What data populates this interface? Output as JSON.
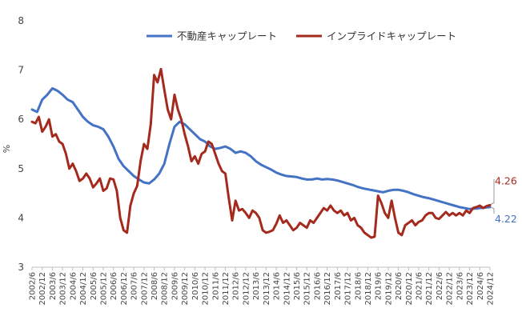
{
  "chart_data": {
    "type": "line",
    "title": "",
    "xlabel": "",
    "ylabel": "%",
    "ylim": [
      3,
      8
    ],
    "yticks": [
      3,
      4,
      5,
      6,
      7,
      8
    ],
    "grid": false,
    "legend_position": "top",
    "x_start": "2002/6",
    "x_end": "2024/12",
    "x_tick_labels": [
      "2002/6",
      "2002/12",
      "2003/6",
      "2003/12",
      "2004/6",
      "2004/12",
      "2005/6",
      "2005/12",
      "2006/6",
      "2006/12",
      "2007/6",
      "2007/12",
      "2008/6",
      "2008/12",
      "2009/6",
      "2009/12",
      "2010/6",
      "2010/12",
      "2011/6",
      "2011/12",
      "2012/6",
      "2012/12",
      "2013/6",
      "2013/12",
      "2014/6",
      "2014/12",
      "2015/6",
      "2015/12",
      "2016/6",
      "2016/12",
      "2017/6",
      "2017/12",
      "2018/6",
      "2018/12",
      "2019/6",
      "2019/12",
      "2020/6",
      "2020/12",
      "2021/6",
      "2021/12",
      "2022/6",
      "2022/12",
      "2023/6",
      "2023/12",
      "2024/6",
      "2024/12"
    ],
    "series": [
      {
        "name": "不動産キャップレート",
        "color": "#4472C4",
        "end_label": "4.22",
        "points": [
          [
            "2002/6",
            6.2
          ],
          [
            "2002/9",
            6.15
          ],
          [
            "2002/12",
            6.4
          ],
          [
            "2003/3",
            6.5
          ],
          [
            "2003/6",
            6.63
          ],
          [
            "2003/9",
            6.58
          ],
          [
            "2003/12",
            6.5
          ],
          [
            "2004/3",
            6.4
          ],
          [
            "2004/6",
            6.35
          ],
          [
            "2004/9",
            6.2
          ],
          [
            "2004/12",
            6.05
          ],
          [
            "2005/3",
            5.95
          ],
          [
            "2005/6",
            5.88
          ],
          [
            "2005/9",
            5.85
          ],
          [
            "2005/12",
            5.8
          ],
          [
            "2006/3",
            5.65
          ],
          [
            "2006/6",
            5.45
          ],
          [
            "2006/9",
            5.2
          ],
          [
            "2006/12",
            5.05
          ],
          [
            "2007/3",
            4.95
          ],
          [
            "2007/6",
            4.85
          ],
          [
            "2007/9",
            4.78
          ],
          [
            "2007/12",
            4.72
          ],
          [
            "2008/3",
            4.7
          ],
          [
            "2008/6",
            4.78
          ],
          [
            "2008/9",
            4.9
          ],
          [
            "2008/12",
            5.1
          ],
          [
            "2009/3",
            5.5
          ],
          [
            "2009/6",
            5.85
          ],
          [
            "2009/9",
            5.95
          ],
          [
            "2009/12",
            5.9
          ],
          [
            "2010/3",
            5.8
          ],
          [
            "2010/6",
            5.7
          ],
          [
            "2010/9",
            5.6
          ],
          [
            "2010/12",
            5.55
          ],
          [
            "2011/3",
            5.45
          ],
          [
            "2011/6",
            5.4
          ],
          [
            "2011/9",
            5.42
          ],
          [
            "2011/12",
            5.45
          ],
          [
            "2012/3",
            5.4
          ],
          [
            "2012/6",
            5.32
          ],
          [
            "2012/9",
            5.35
          ],
          [
            "2012/12",
            5.32
          ],
          [
            "2013/3",
            5.25
          ],
          [
            "2013/6",
            5.15
          ],
          [
            "2013/9",
            5.08
          ],
          [
            "2013/12",
            5.03
          ],
          [
            "2014/3",
            4.98
          ],
          [
            "2014/6",
            4.92
          ],
          [
            "2014/9",
            4.88
          ],
          [
            "2014/12",
            4.85
          ],
          [
            "2015/3",
            4.84
          ],
          [
            "2015/6",
            4.83
          ],
          [
            "2015/9",
            4.8
          ],
          [
            "2015/12",
            4.78
          ],
          [
            "2016/3",
            4.78
          ],
          [
            "2016/6",
            4.8
          ],
          [
            "2016/9",
            4.78
          ],
          [
            "2016/12",
            4.79
          ],
          [
            "2017/3",
            4.78
          ],
          [
            "2017/6",
            4.76
          ],
          [
            "2017/9",
            4.73
          ],
          [
            "2017/12",
            4.7
          ],
          [
            "2018/3",
            4.67
          ],
          [
            "2018/6",
            4.63
          ],
          [
            "2018/9",
            4.6
          ],
          [
            "2018/12",
            4.58
          ],
          [
            "2019/3",
            4.56
          ],
          [
            "2019/6",
            4.54
          ],
          [
            "2019/9",
            4.52
          ],
          [
            "2019/12",
            4.55
          ],
          [
            "2020/3",
            4.57
          ],
          [
            "2020/6",
            4.57
          ],
          [
            "2020/9",
            4.55
          ],
          [
            "2020/12",
            4.52
          ],
          [
            "2021/3",
            4.48
          ],
          [
            "2021/6",
            4.45
          ],
          [
            "2021/9",
            4.42
          ],
          [
            "2021/12",
            4.4
          ],
          [
            "2022/3",
            4.37
          ],
          [
            "2022/6",
            4.34
          ],
          [
            "2022/9",
            4.31
          ],
          [
            "2022/12",
            4.28
          ],
          [
            "2023/3",
            4.25
          ],
          [
            "2023/6",
            4.22
          ],
          [
            "2023/9",
            4.2
          ],
          [
            "2023/12",
            4.18
          ],
          [
            "2024/3",
            4.19
          ],
          [
            "2024/6",
            4.2
          ],
          [
            "2024/9",
            4.21
          ],
          [
            "2024/12",
            4.22
          ]
        ]
      },
      {
        "name": "インプライドキャップレート",
        "color": "#A52A1E",
        "end_label": "4.26",
        "points": [
          [
            "2002/6",
            5.95
          ],
          [
            "2002/8",
            5.92
          ],
          [
            "2002/10",
            6.05
          ],
          [
            "2002/12",
            5.75
          ],
          [
            "2003/2",
            5.85
          ],
          [
            "2003/4",
            6.0
          ],
          [
            "2003/6",
            5.65
          ],
          [
            "2003/8",
            5.7
          ],
          [
            "2003/10",
            5.55
          ],
          [
            "2003/12",
            5.5
          ],
          [
            "2004/2",
            5.3
          ],
          [
            "2004/4",
            5.0
          ],
          [
            "2004/6",
            5.1
          ],
          [
            "2004/8",
            4.95
          ],
          [
            "2004/10",
            4.75
          ],
          [
            "2004/12",
            4.8
          ],
          [
            "2005/2",
            4.9
          ],
          [
            "2005/4",
            4.8
          ],
          [
            "2005/6",
            4.62
          ],
          [
            "2005/8",
            4.7
          ],
          [
            "2005/10",
            4.8
          ],
          [
            "2005/12",
            4.55
          ],
          [
            "2006/2",
            4.6
          ],
          [
            "2006/4",
            4.8
          ],
          [
            "2006/6",
            4.78
          ],
          [
            "2006/8",
            4.55
          ],
          [
            "2006/10",
            4.0
          ],
          [
            "2006/12",
            3.75
          ],
          [
            "2007/2",
            3.7
          ],
          [
            "2007/4",
            4.25
          ],
          [
            "2007/6",
            4.5
          ],
          [
            "2007/8",
            4.65
          ],
          [
            "2007/10",
            5.15
          ],
          [
            "2007/12",
            5.5
          ],
          [
            "2008/2",
            5.4
          ],
          [
            "2008/4",
            5.9
          ],
          [
            "2008/6",
            6.9
          ],
          [
            "2008/8",
            6.75
          ],
          [
            "2008/10",
            7.02
          ],
          [
            "2008/12",
            6.6
          ],
          [
            "2009/2",
            6.2
          ],
          [
            "2009/4",
            6.0
          ],
          [
            "2009/6",
            6.5
          ],
          [
            "2009/8",
            6.2
          ],
          [
            "2009/10",
            6.0
          ],
          [
            "2009/12",
            5.7
          ],
          [
            "2010/2",
            5.45
          ],
          [
            "2010/4",
            5.15
          ],
          [
            "2010/6",
            5.25
          ],
          [
            "2010/8",
            5.1
          ],
          [
            "2010/10",
            5.3
          ],
          [
            "2010/12",
            5.35
          ],
          [
            "2011/2",
            5.55
          ],
          [
            "2011/4",
            5.5
          ],
          [
            "2011/6",
            5.3
          ],
          [
            "2011/8",
            5.1
          ],
          [
            "2011/10",
            4.95
          ],
          [
            "2011/12",
            4.9
          ],
          [
            "2012/2",
            4.4
          ],
          [
            "2012/4",
            3.95
          ],
          [
            "2012/6",
            4.35
          ],
          [
            "2012/8",
            4.15
          ],
          [
            "2012/10",
            4.18
          ],
          [
            "2012/12",
            4.1
          ],
          [
            "2013/2",
            4.0
          ],
          [
            "2013/4",
            4.15
          ],
          [
            "2013/6",
            4.1
          ],
          [
            "2013/8",
            4.0
          ],
          [
            "2013/10",
            3.75
          ],
          [
            "2013/12",
            3.7
          ],
          [
            "2014/2",
            3.72
          ],
          [
            "2014/4",
            3.75
          ],
          [
            "2014/6",
            3.88
          ],
          [
            "2014/8",
            4.05
          ],
          [
            "2014/10",
            3.9
          ],
          [
            "2014/12",
            3.95
          ],
          [
            "2015/2",
            3.85
          ],
          [
            "2015/4",
            3.75
          ],
          [
            "2015/6",
            3.8
          ],
          [
            "2015/8",
            3.9
          ],
          [
            "2015/10",
            3.85
          ],
          [
            "2015/12",
            3.8
          ],
          [
            "2016/2",
            3.95
          ],
          [
            "2016/4",
            3.9
          ],
          [
            "2016/6",
            4.0
          ],
          [
            "2016/8",
            4.1
          ],
          [
            "2016/10",
            4.2
          ],
          [
            "2016/12",
            4.15
          ],
          [
            "2017/2",
            4.25
          ],
          [
            "2017/4",
            4.15
          ],
          [
            "2017/6",
            4.1
          ],
          [
            "2017/8",
            4.15
          ],
          [
            "2017/10",
            4.05
          ],
          [
            "2017/12",
            4.1
          ],
          [
            "2018/2",
            3.95
          ],
          [
            "2018/4",
            4.0
          ],
          [
            "2018/6",
            3.85
          ],
          [
            "2018/8",
            3.8
          ],
          [
            "2018/10",
            3.7
          ],
          [
            "2018/12",
            3.65
          ],
          [
            "2019/2",
            3.6
          ],
          [
            "2019/4",
            3.62
          ],
          [
            "2019/6",
            4.45
          ],
          [
            "2019/8",
            4.3
          ],
          [
            "2019/10",
            4.1
          ],
          [
            "2019/12",
            4.0
          ],
          [
            "2020/2",
            4.35
          ],
          [
            "2020/4",
            4.0
          ],
          [
            "2020/6",
            3.7
          ],
          [
            "2020/8",
            3.65
          ],
          [
            "2020/10",
            3.85
          ],
          [
            "2020/12",
            3.9
          ],
          [
            "2021/2",
            3.95
          ],
          [
            "2021/4",
            3.85
          ],
          [
            "2021/6",
            3.92
          ],
          [
            "2021/8",
            3.95
          ],
          [
            "2021/10",
            4.05
          ],
          [
            "2021/12",
            4.1
          ],
          [
            "2022/2",
            4.1
          ],
          [
            "2022/4",
            4.0
          ],
          [
            "2022/6",
            3.98
          ],
          [
            "2022/8",
            4.05
          ],
          [
            "2022/10",
            4.12
          ],
          [
            "2022/12",
            4.05
          ],
          [
            "2023/2",
            4.1
          ],
          [
            "2023/4",
            4.05
          ],
          [
            "2023/6",
            4.1
          ],
          [
            "2023/8",
            4.05
          ],
          [
            "2023/10",
            4.15
          ],
          [
            "2023/12",
            4.1
          ],
          [
            "2024/2",
            4.2
          ],
          [
            "2024/4",
            4.22
          ],
          [
            "2024/6",
            4.25
          ],
          [
            "2024/8",
            4.2
          ],
          [
            "2024/10",
            4.24
          ],
          [
            "2024/12",
            4.26
          ]
        ]
      }
    ]
  }
}
